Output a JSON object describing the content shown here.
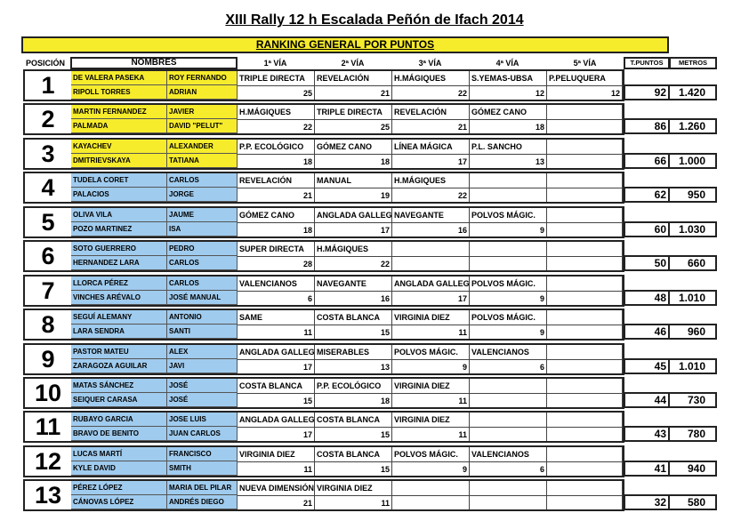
{
  "title": "XIII Rally 12 h Escalada Peñón de Ifach 2014",
  "banner": "RANKING GENERAL POR PUNTOS",
  "headers": {
    "posicion": "POSICIÓN",
    "nombres": "NOMBRES",
    "via1": "1ª VÍA",
    "via2": "2ª VÍA",
    "via3": "3ª VÍA",
    "via4": "4ª VÍA",
    "via5": "5ª VÍA",
    "puntos": "T.PUNTOS",
    "metros": "METROS"
  },
  "colors": {
    "podium": "#f7ec2c",
    "others": "#9fcbee"
  },
  "rows": [
    {
      "pos": "1",
      "a1": "DE VALERA PASEKA",
      "a2": "ROY FERNANDO",
      "b1": "RIPOLL TORRES",
      "b2": "ADRIAN",
      "vias": [
        [
          "TRIPLE DIRECTA",
          "25"
        ],
        [
          "REVELACIÓN",
          "21"
        ],
        [
          "H.MÁGIQUES",
          "22"
        ],
        [
          "S.YEMAS-UBSA",
          "12"
        ],
        [
          "P.PELUQUERA",
          "12"
        ]
      ],
      "puntos": "92",
      "metros": "1.420"
    },
    {
      "pos": "2",
      "a1": "MARTIN FERNANDEZ",
      "a2": "JAVIER",
      "b1": "PALMADA",
      "b2": "DAVID \"PELUT\"",
      "vias": [
        [
          "H.MÁGIQUES",
          "22"
        ],
        [
          "TRIPLE DIRECTA",
          "25"
        ],
        [
          "REVELACIÓN",
          "21"
        ],
        [
          "GÓMEZ CANO",
          "18"
        ]
      ],
      "puntos": "86",
      "metros": "1.260"
    },
    {
      "pos": "3",
      "a1": "KAYACHEV",
      "a2": "ALEXANDER",
      "b1": "DMITRIEVSKAYA",
      "b2": "TATIANA",
      "vias": [
        [
          "P.P. ECOLÓGICO",
          "18"
        ],
        [
          "GÓMEZ CANO",
          "18"
        ],
        [
          "LÍNEA MÁGICA",
          "17"
        ],
        [
          "P.L. SANCHO",
          "13"
        ]
      ],
      "puntos": "66",
      "metros": "1.000"
    },
    {
      "pos": "4",
      "a1": "TUDELA CORET",
      "a2": "CARLOS",
      "b1": "PALACIOS",
      "b2": "JORGE",
      "vias": [
        [
          "REVELACIÓN",
          "21"
        ],
        [
          "MANUAL",
          "19"
        ],
        [
          "H.MÁGIQUES",
          "22"
        ]
      ],
      "puntos": "62",
      "metros": "950"
    },
    {
      "pos": "5",
      "a1": "OLIVA VILA",
      "a2": "JAUME",
      "b1": "POZO MARTINEZ",
      "b2": "ISA",
      "vias": [
        [
          "GÓMEZ CANO",
          "18"
        ],
        [
          "ANGLADA GALLEG",
          "17"
        ],
        [
          "NAVEGANTE",
          "16"
        ],
        [
          "POLVOS MÁGIC.",
          "9"
        ]
      ],
      "puntos": "60",
      "metros": "1.030"
    },
    {
      "pos": "6",
      "a1": "SOTO GUERRERO",
      "a2": "PEDRO",
      "b1": "HERNANDEZ LARA",
      "b2": "CARLOS",
      "vias": [
        [
          "SUPER DIRECTA",
          "28"
        ],
        [
          "H.MÁGIQUES",
          "22"
        ]
      ],
      "puntos": "50",
      "metros": "660"
    },
    {
      "pos": "7",
      "a1": "LLORCA PÉREZ",
      "a2": "CARLOS",
      "b1": "VINCHES ARÉVALO",
      "b2": "JOSÉ MANUAL",
      "vias": [
        [
          "VALENCIANOS",
          "6"
        ],
        [
          "NAVEGANTE",
          "16"
        ],
        [
          "ANGLADA GALLEG",
          "17"
        ],
        [
          "POLVOS MÁGIC.",
          "9"
        ]
      ],
      "puntos": "48",
      "metros": "1.010"
    },
    {
      "pos": "8",
      "a1": "SEGUÍ ALEMANY",
      "a2": "ANTONIO",
      "b1": "LARA SENDRA",
      "b2": "SANTI",
      "vias": [
        [
          "SAME",
          "11"
        ],
        [
          "COSTA BLANCA",
          "15"
        ],
        [
          "VIRGINIA DIEZ",
          "11"
        ],
        [
          "POLVOS MÁGIC.",
          "9"
        ]
      ],
      "puntos": "46",
      "metros": "960"
    },
    {
      "pos": "9",
      "a1": "PASTOR MATEU",
      "a2": "ALEX",
      "b1": "ZARAGOZA AGUILAR",
      "b2": "JAVI",
      "vias": [
        [
          "ANGLADA GALLEG",
          "17"
        ],
        [
          "MISERABLES",
          "13"
        ],
        [
          "POLVOS MÁGIC.",
          "9"
        ],
        [
          "VALENCIANOS",
          "6"
        ]
      ],
      "puntos": "45",
      "metros": "1.010"
    },
    {
      "pos": "10",
      "a1": "MATAS SÁNCHEZ",
      "a2": "JOSÉ",
      "b1": "SEIQUER CARASA",
      "b2": "JOSÉ",
      "vias": [
        [
          "COSTA BLANCA",
          "15"
        ],
        [
          "P.P. ECOLÓGICO",
          "18"
        ],
        [
          "VIRGINIA DIEZ",
          "11"
        ]
      ],
      "puntos": "44",
      "metros": "730"
    },
    {
      "pos": "11",
      "a1": "RUBAYO GARCIA",
      "a2": "JOSE LUIS",
      "b1": "BRAVO DE BENITO",
      "b2": "JUAN CARLOS",
      "vias": [
        [
          "ANGLADA GALLEG",
          "17"
        ],
        [
          "COSTA BLANCA",
          "15"
        ],
        [
          "VIRGINIA DIEZ",
          "11"
        ]
      ],
      "puntos": "43",
      "metros": "780"
    },
    {
      "pos": "12",
      "a1": "LUCAS MARTÍ",
      "a2": "FRANCISCO",
      "b1": "KYLE DAVID",
      "b2": "SMITH",
      "vias": [
        [
          "VIRGINIA DIEZ",
          "11"
        ],
        [
          "COSTA BLANCA",
          "15"
        ],
        [
          "POLVOS MÁGIC.",
          "9"
        ],
        [
          "VALENCIANOS",
          "6"
        ]
      ],
      "puntos": "41",
      "metros": "940"
    },
    {
      "pos": "13",
      "a1": "PÉREZ LÓPEZ",
      "a2": "MARIA DEL PILAR",
      "b1": "CÁNOVAS LÓPEZ",
      "b2": "ANDRÉS DIEGO",
      "vias": [
        [
          "NUEVA DIMENSIÓN",
          "21"
        ],
        [
          "VIRGINIA DIEZ",
          "11"
        ]
      ],
      "puntos": "32",
      "metros": "580"
    }
  ]
}
